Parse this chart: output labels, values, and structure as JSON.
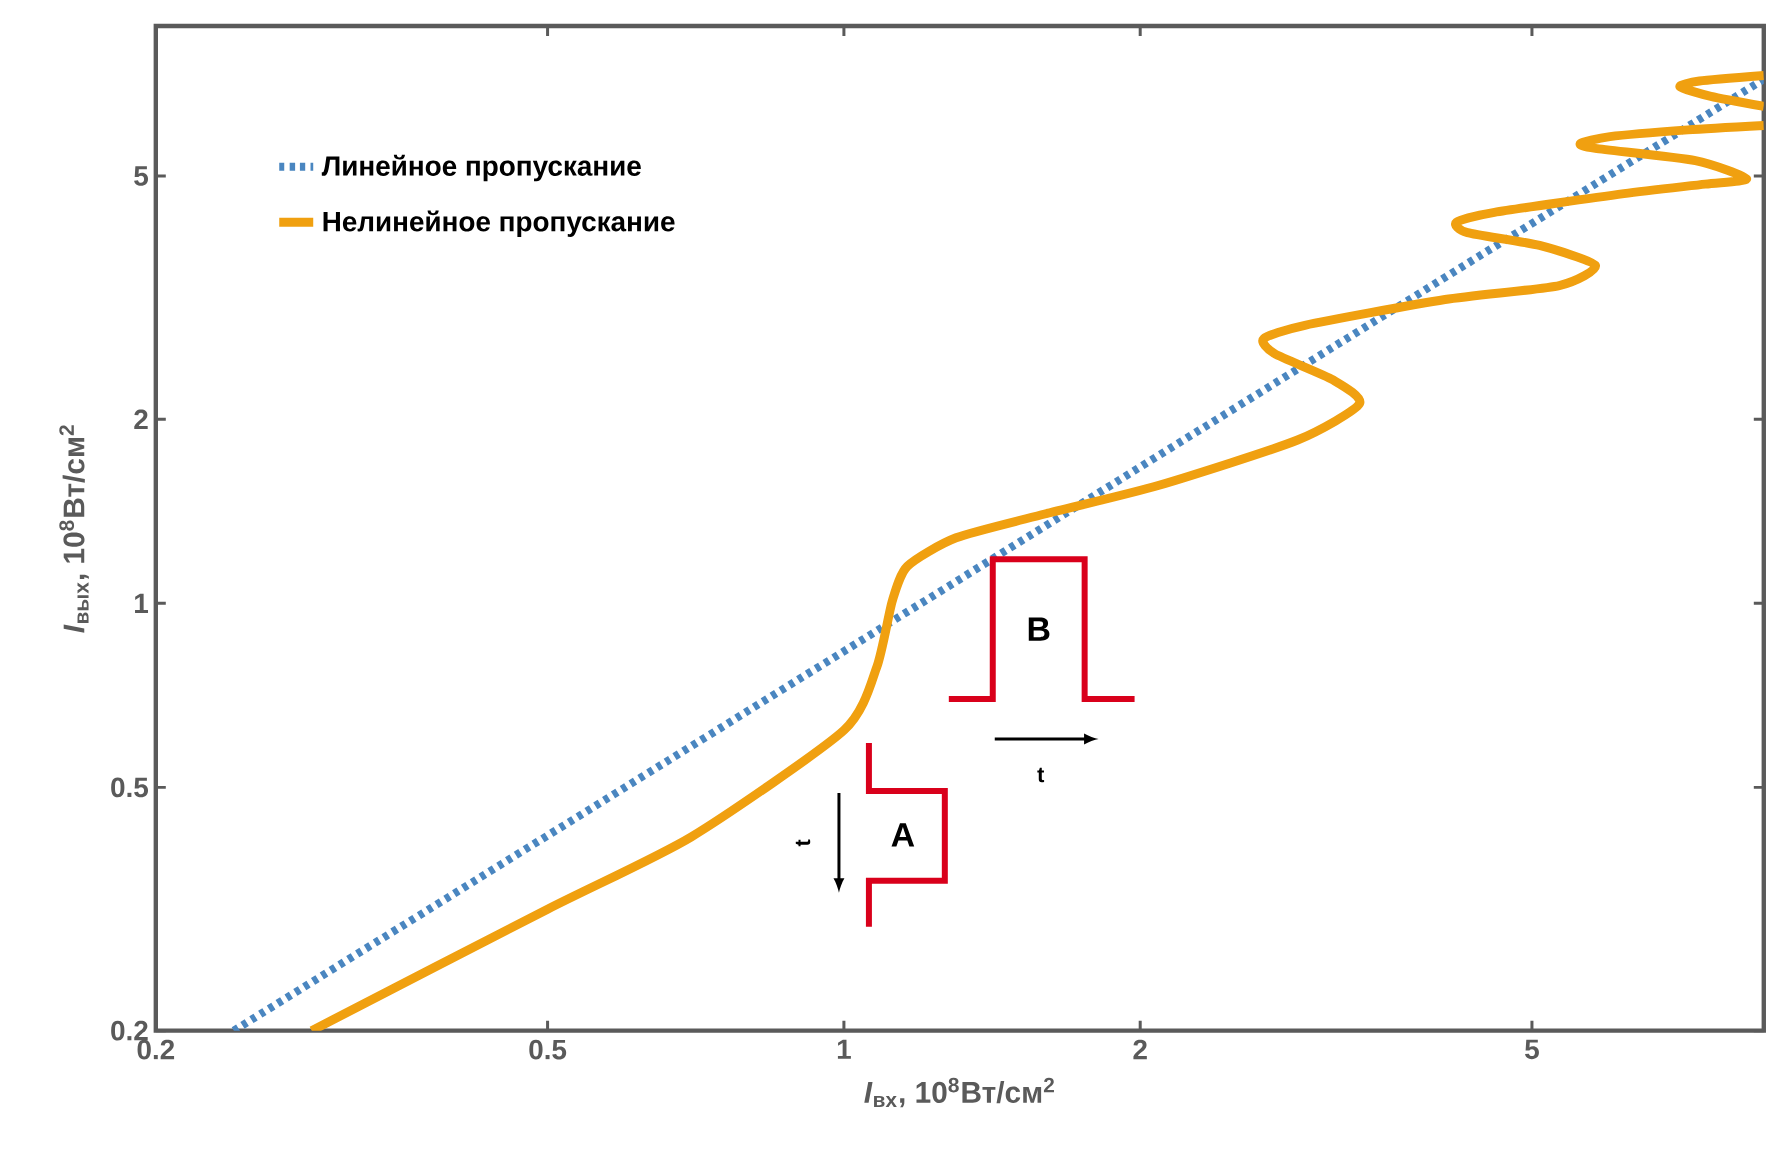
{
  "chart_data": {
    "type": "line",
    "xlabel": "*I*$_{вх}$, 10$^{8}$Вт/см$^{2}$",
    "ylabel": "*I*$_{вых}$, 10$^{8}$Вт/см$^{2}$",
    "log": "xy",
    "xlim": [
      0.2,
      8.6
    ],
    "ylim": [
      0.2,
      8.8
    ],
    "xticks": [
      0.2,
      0.5,
      1,
      2,
      5
    ],
    "yticks": [
      0.2,
      0.5,
      1,
      2,
      5
    ],
    "legend": "top left",
    "grid": false,
    "series": [
      {
        "name": "Линейное пропускание",
        "color": "#4a86c0",
        "line_style": "dotted",
        "x": [
          0.24,
          8.6
        ],
        "values": [
          0.2,
          7.2
        ]
      },
      {
        "name": "Нелинейное пропускание",
        "color": "#f0a010",
        "line_style": "solid",
        "x": [
          0.288,
          0.5,
          0.7,
          1.0,
          1.08,
          1.12,
          1.16,
          1.3,
          1.6,
          2.09,
          2.89,
          3.34,
          3.14,
          2.74,
          2.67,
          2.94,
          4.08,
          5.33,
          5.8,
          5.09,
          4.3,
          4.19,
          4.58,
          6.2,
          7.5,
          8.26,
          7.33,
          5.8,
          5.6,
          6.0,
          7.2,
          8.6,
          null,
          8.6,
          7.6,
          7.07,
          7.4,
          8.6
        ],
        "values": [
          0.2,
          0.316,
          0.415,
          0.62,
          0.787,
          1.01,
          1.15,
          1.28,
          1.4,
          1.56,
          1.85,
          2.12,
          2.32,
          2.56,
          2.71,
          2.85,
          3.14,
          3.31,
          3.57,
          3.85,
          4.04,
          4.2,
          4.36,
          4.68,
          4.85,
          4.95,
          5.3,
          5.55,
          5.65,
          5.8,
          5.95,
          6.05,
          null,
          6.5,
          6.75,
          7.0,
          7.15,
          7.3
        ]
      }
    ],
    "annotations": [
      "A",
      "B",
      "t",
      "t"
    ]
  }
}
